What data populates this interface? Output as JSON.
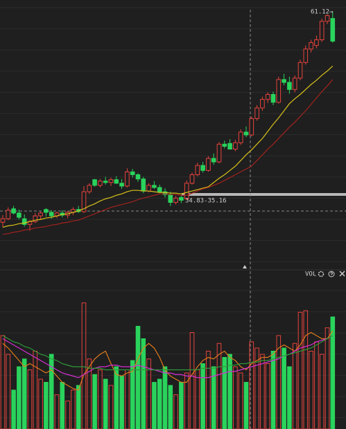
{
  "chart_data": [
    {
      "type": "candlestick",
      "ylim": [
        24.8,
        62.8
      ],
      "up_color": "#e8433d",
      "down_color": "#2ad35c",
      "open": [
        31.5,
        32.0,
        33.4,
        32.8,
        32.0,
        31.2,
        31.6,
        32.4,
        33.3,
        32.9,
        32.4,
        32.8,
        32.5,
        32.9,
        33.3,
        33.0,
        35.8,
        37.5,
        36.7,
        37.3,
        37.1,
        37.5,
        37.0,
        36.6,
        38.6,
        38.2,
        37.6,
        35.9,
        36.7,
        36.4,
        35.8,
        35.4,
        34.3,
        35.0,
        34.8,
        37.0,
        38.2,
        39.5,
        38.8,
        40.5,
        40.0,
        42.5,
        42.6,
        41.8,
        42.7,
        44.2,
        43.8,
        46.1,
        47.6,
        48.8,
        49.5,
        48.4,
        51.6,
        51.2,
        50.2,
        51.8,
        54.0,
        55.9,
        56.4,
        57.2,
        59.8,
        60.2
      ],
      "high": [
        32.5,
        33.6,
        33.8,
        33.3,
        32.6,
        31.8,
        32.8,
        33.0,
        33.5,
        33.2,
        33.0,
        33.2,
        33.1,
        33.6,
        33.8,
        36.6,
        37.0,
        37.6,
        37.6,
        37.9,
        37.8,
        38.0,
        37.6,
        39.1,
        39.0,
        38.4,
        37.9,
        37.0,
        37.3,
        36.8,
        36.3,
        35.8,
        35.2,
        35.3,
        37.4,
        38.5,
        39.9,
        40.0,
        40.8,
        41.2,
        42.8,
        43.0,
        43.2,
        43.1,
        44.6,
        45.0,
        46.4,
        48.0,
        49.2,
        49.8,
        49.9,
        52.0,
        52.4,
        52.0,
        52.2,
        54.4,
        56.4,
        57.2,
        57.8,
        60.2,
        60.8,
        61.12
      ],
      "low": [
        30.8,
        31.8,
        32.6,
        31.9,
        30.9,
        30.3,
        31.4,
        31.9,
        32.3,
        32.0,
        32.1,
        32.2,
        32.1,
        32.5,
        32.8,
        32.8,
        35.5,
        36.5,
        36.4,
        36.8,
        36.6,
        36.9,
        36.2,
        36.4,
        37.8,
        37.2,
        35.6,
        35.7,
        36.2,
        35.6,
        35.0,
        33.8,
        34.0,
        34.2,
        34.6,
        36.8,
        38.0,
        38.5,
        38.6,
        39.6,
        39.8,
        41.9,
        41.8,
        41.5,
        42.4,
        43.5,
        43.6,
        45.8,
        47.2,
        48.3,
        48.0,
        48.2,
        50.8,
        49.6,
        49.8,
        51.5,
        53.7,
        55.4,
        56.0,
        56.9,
        59.4,
        56.8
      ],
      "close": [
        32.0,
        33.2,
        32.8,
        32.2,
        31.2,
        31.6,
        32.4,
        32.8,
        32.9,
        32.4,
        32.8,
        32.5,
        32.9,
        33.3,
        33.0,
        35.8,
        36.7,
        36.7,
        37.3,
        37.1,
        37.5,
        37.0,
        36.6,
        38.6,
        38.2,
        37.6,
        35.9,
        36.7,
        36.4,
        35.8,
        35.4,
        34.3,
        34.9,
        34.6,
        37.0,
        38.2,
        39.5,
        38.8,
        40.5,
        40.0,
        42.5,
        42.2,
        41.8,
        42.7,
        44.2,
        43.8,
        46.1,
        47.6,
        48.8,
        49.5,
        48.4,
        51.6,
        51.2,
        50.2,
        51.8,
        54.0,
        55.9,
        56.8,
        57.2,
        59.8,
        60.6,
        57.0
      ],
      "lines": [
        {
          "color": "#d8c21a",
          "values": [
            30.8,
            31.0,
            31.1,
            31.3,
            31.4,
            31.6,
            31.8,
            31.9,
            32.1,
            32.2,
            32.4,
            32.6,
            32.7,
            32.9,
            33.1,
            33.4,
            33.8,
            34.1,
            34.5,
            34.8,
            35.0,
            35.3,
            35.5,
            35.8,
            36.0,
            36.0,
            35.9,
            35.9,
            35.8,
            35.7,
            35.7,
            35.6,
            35.6,
            35.5,
            35.7,
            35.9,
            36.1,
            36.3,
            36.5,
            37.1,
            37.7,
            38.2,
            38.8,
            39.4,
            40.2,
            41.0,
            41.7,
            42.5,
            43.3,
            44.3,
            45.3,
            46.2,
            47.2,
            48.2,
            48.9,
            49.5,
            50.2,
            50.9,
            51.5,
            52.2,
            52.8,
            53.5
          ]
        },
        {
          "color": "#a3231f",
          "values": [
            29.8,
            29.9,
            30.1,
            30.2,
            30.4,
            30.5,
            30.7,
            30.8,
            30.9,
            31.1,
            31.2,
            31.4,
            31.5,
            31.7,
            31.8,
            32.1,
            32.4,
            32.7,
            33.0,
            33.3,
            33.6,
            33.8,
            34.0,
            34.2,
            34.4,
            34.7,
            34.9,
            35.1,
            35.3,
            35.5,
            35.5,
            35.4,
            35.4,
            35.3,
            35.3,
            35.6,
            35.9,
            36.2,
            36.4,
            36.7,
            37.0,
            37.4,
            37.8,
            38.2,
            38.6,
            39.0,
            39.4,
            40.2,
            41.0,
            41.8,
            42.5,
            43.3,
            44.1,
            44.9,
            45.6,
            46.4,
            47.2,
            48.1,
            49.0,
            49.9,
            50.7,
            51.6
          ]
        }
      ],
      "annotations": [
        "61.12→",
        "34.83-35.16"
      ]
    },
    {
      "type": "bar",
      "title": "VOL",
      "ylim": [
        0,
        100
      ],
      "values": [
        60,
        48,
        25,
        40,
        45,
        38,
        50,
        32,
        30,
        48,
        22,
        30,
        18,
        25,
        28,
        81,
        45,
        35,
        38,
        32,
        28,
        40,
        34,
        38,
        44,
        66,
        58,
        45,
        30,
        32,
        40,
        28,
        22,
        30,
        36,
        62,
        38,
        42,
        50,
        40,
        55,
        46,
        48,
        40,
        36,
        30,
        56,
        52,
        48,
        42,
        50,
        60,
        52,
        40,
        55,
        75,
        76,
        50,
        56,
        48,
        65,
        72
      ],
      "lines": [
        {
          "color": "#e07a1c",
          "values": [
            55,
            52,
            48,
            44,
            40,
            42,
            40,
            38,
            36,
            38,
            34,
            30,
            28,
            26,
            25,
            35,
            40,
            45,
            48,
            50,
            42,
            35,
            34,
            36,
            37,
            45,
            52,
            55,
            52,
            46,
            38,
            34,
            32,
            30,
            30,
            35,
            40,
            44,
            46,
            45,
            48,
            50,
            46,
            44,
            40,
            38,
            42,
            44,
            46,
            46,
            48,
            52,
            54,
            52,
            50,
            54,
            60,
            62,
            60,
            58,
            58,
            63
          ]
        },
        {
          "color": "#d42fd4",
          "values": [
            58,
            56,
            54,
            52,
            50,
            48,
            46,
            44,
            42,
            40,
            38,
            36,
            35,
            34,
            33,
            35,
            37,
            39,
            40,
            40,
            41,
            41,
            40,
            40,
            40,
            41,
            40,
            39,
            38,
            37,
            36,
            36,
            35,
            35,
            34,
            34,
            33,
            33,
            33,
            34,
            35,
            36,
            37,
            37,
            38,
            39,
            40,
            41,
            42,
            43,
            44,
            45,
            47,
            48,
            50,
            52,
            53,
            54,
            56,
            57,
            58,
            60
          ]
        },
        {
          "color": "#2e9a3a",
          "values": [
            60,
            58,
            56,
            55,
            53,
            52,
            50,
            48,
            47,
            45,
            44,
            42,
            41,
            40,
            40,
            40,
            39,
            39,
            39,
            38,
            38,
            38,
            38,
            38,
            38,
            38,
            38,
            38,
            38,
            38,
            38,
            38,
            38,
            38,
            38,
            38,
            38,
            39,
            39,
            39,
            40,
            40,
            41,
            41,
            42,
            42,
            43,
            43,
            44,
            44,
            45,
            46,
            47,
            48,
            49,
            50,
            51,
            52,
            54,
            56,
            58,
            60
          ]
        }
      ]
    }
  ]
}
